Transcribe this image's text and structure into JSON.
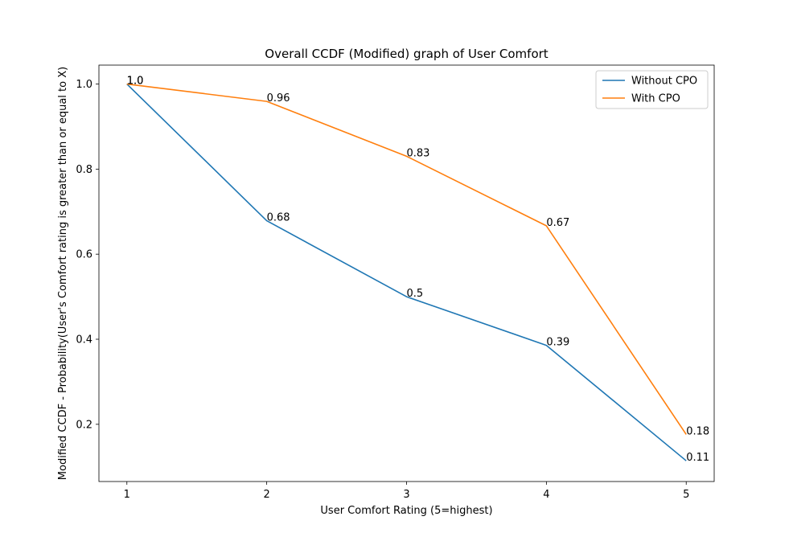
{
  "chart_data": {
    "type": "line",
    "title": "Overall CCDF (Modified) graph of User Comfort",
    "xlabel": "User Comfort Rating (5=highest)",
    "ylabel": "Modified CCDF - Probability(User's Comfort rating is greater than or equal to X)",
    "x": [
      1,
      2,
      3,
      4,
      5
    ],
    "xticks": [
      "1",
      "2",
      "3",
      "4",
      "5"
    ],
    "yticks": [
      "0.2",
      "0.4",
      "0.6",
      "0.8",
      "1.0"
    ],
    "xlim": [
      0.8,
      5.2
    ],
    "ylim": [
      0.0655,
      1.0445
    ],
    "grid": false,
    "legend_position": "upper right",
    "series": [
      {
        "name": "Without CPO",
        "color": "#1f77b4",
        "values": [
          1.0,
          0.6786,
          0.5,
          0.3857,
          0.1143
        ],
        "labels": [
          "1.0",
          "0.68",
          "0.5",
          "0.39",
          "0.11"
        ]
      },
      {
        "name": "With CPO",
        "color": "#ff7f0e",
        "values": [
          1.0,
          0.9592,
          0.8302,
          0.6667,
          0.1762
        ],
        "labels": [
          "1.0",
          "0.96",
          "0.83",
          "0.67",
          "0.18"
        ]
      }
    ]
  }
}
